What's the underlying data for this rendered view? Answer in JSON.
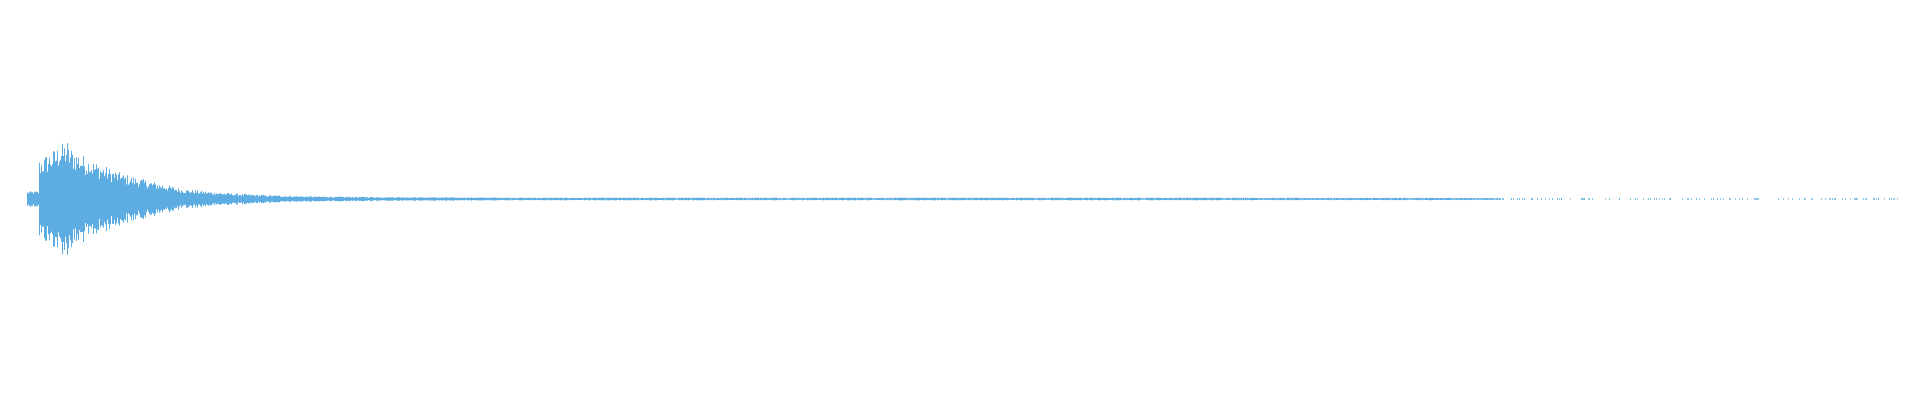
{
  "chart_data": {
    "type": "waveform",
    "title": "",
    "xlabel": "",
    "ylabel": "",
    "ylim": [
      -1,
      1
    ],
    "grid": false,
    "legend": "none",
    "color": "#5dade2",
    "background": "#ffffff",
    "envelope": [
      0.25,
      0.3,
      0.2,
      0.13,
      0.09,
      0.05,
      0.035,
      0.025,
      0.018,
      0.014,
      0.012,
      0.011,
      0.01,
      0.009,
      0.008,
      0.008,
      0.007,
      0.007,
      0.007,
      0.007,
      0.007,
      0.007,
      0.007,
      0.007,
      0.007,
      0.007,
      0.007,
      0.007,
      0.007,
      0.007,
      0.007,
      0.007,
      0.007,
      0.007,
      0.007,
      0.007,
      0.007,
      0.007,
      0.007,
      0.007,
      0.006,
      0.006,
      0.006,
      0.006,
      0.006,
      0.006,
      0.006,
      0.005,
      0.005,
      0.005,
      0.005,
      0.005,
      0.004,
      0.004,
      0.004,
      0.004,
      0.004,
      0.004,
      0.004,
      0.004
    ]
  }
}
